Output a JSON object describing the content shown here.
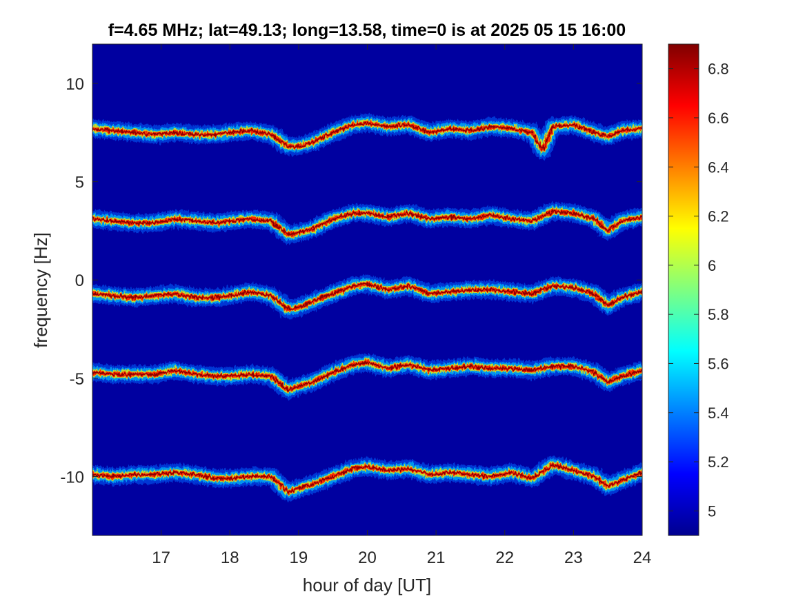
{
  "chart_data": {
    "type": "heatmap",
    "title": "f=4.65 MHz;  lat=49.13; long=13.58, time=0 is at 2025 05 15 16:00",
    "xlabel": "hour of day [UT]",
    "ylabel": "frequency [Hz]",
    "xlim": [
      16,
      24
    ],
    "ylim": [
      -13,
      12
    ],
    "x_ticks": [
      17,
      18,
      19,
      20,
      21,
      22,
      23,
      24
    ],
    "y_ticks": [
      -10,
      -5,
      0,
      5,
      10
    ],
    "colorbar": {
      "colormap": "jet",
      "range": [
        4.9,
        6.9
      ],
      "ticks": [
        5,
        5.2,
        5.4,
        5.6,
        5.8,
        6,
        6.2,
        6.4,
        6.6,
        6.8
      ]
    },
    "grid": false,
    "background_value": 4.9,
    "series": [
      {
        "x": [
          16.0,
          16.3,
          16.6,
          16.9,
          17.2,
          17.5,
          17.8,
          18.0,
          18.3,
          18.6,
          18.85,
          19.0,
          19.2,
          19.5,
          19.8,
          20.0,
          20.3,
          20.6,
          20.9,
          21.2,
          21.5,
          21.8,
          22.1,
          22.4,
          22.55,
          22.7,
          23.0,
          23.3,
          23.5,
          23.7,
          24.0
        ],
        "y": [
          7.7,
          7.6,
          7.5,
          7.4,
          7.5,
          7.4,
          7.4,
          7.5,
          7.6,
          7.4,
          6.8,
          6.8,
          7.0,
          7.5,
          7.9,
          8.0,
          7.8,
          7.9,
          7.5,
          7.7,
          7.6,
          7.8,
          7.7,
          7.5,
          6.6,
          7.8,
          7.9,
          7.5,
          7.3,
          7.6,
          7.7
        ]
      },
      {
        "x": [
          16.0,
          16.3,
          16.6,
          16.9,
          17.2,
          17.5,
          17.8,
          18.0,
          18.3,
          18.6,
          18.85,
          19.0,
          19.2,
          19.5,
          19.8,
          20.0,
          20.3,
          20.6,
          20.9,
          21.2,
          21.5,
          21.8,
          22.1,
          22.4,
          22.7,
          23.0,
          23.3,
          23.5,
          23.7,
          24.0
        ],
        "y": [
          3.1,
          3.0,
          2.9,
          2.9,
          3.1,
          3.0,
          2.9,
          3.0,
          3.1,
          3.0,
          2.3,
          2.4,
          2.6,
          3.1,
          3.4,
          3.4,
          3.2,
          3.4,
          3.1,
          3.2,
          3.1,
          3.3,
          3.1,
          3.0,
          3.5,
          3.4,
          3.1,
          2.5,
          3.0,
          3.2
        ]
      },
      {
        "x": [
          16.0,
          16.3,
          16.6,
          16.9,
          17.2,
          17.5,
          17.8,
          18.0,
          18.3,
          18.6,
          18.85,
          19.0,
          19.2,
          19.5,
          19.8,
          20.0,
          20.3,
          20.6,
          20.9,
          21.2,
          21.5,
          21.8,
          22.1,
          22.4,
          22.7,
          23.0,
          23.3,
          23.5,
          23.7,
          24.0
        ],
        "y": [
          -0.7,
          -0.8,
          -0.9,
          -0.8,
          -0.7,
          -0.9,
          -0.9,
          -0.8,
          -0.6,
          -0.8,
          -1.5,
          -1.4,
          -1.1,
          -0.7,
          -0.3,
          -0.2,
          -0.5,
          -0.3,
          -0.7,
          -0.6,
          -0.5,
          -0.5,
          -0.6,
          -0.7,
          -0.3,
          -0.4,
          -0.7,
          -1.3,
          -0.9,
          -0.6
        ]
      },
      {
        "x": [
          16.0,
          16.3,
          16.6,
          16.9,
          17.2,
          17.5,
          17.8,
          18.0,
          18.3,
          18.6,
          18.85,
          19.0,
          19.2,
          19.5,
          19.8,
          20.0,
          20.3,
          20.6,
          20.9,
          21.2,
          21.5,
          21.8,
          22.1,
          22.4,
          22.7,
          23.0,
          23.3,
          23.5,
          23.7,
          24.0
        ],
        "y": [
          -4.7,
          -4.8,
          -4.8,
          -4.8,
          -4.6,
          -4.8,
          -4.9,
          -4.9,
          -4.8,
          -4.9,
          -5.6,
          -5.4,
          -5.2,
          -4.7,
          -4.3,
          -4.2,
          -4.5,
          -4.3,
          -4.6,
          -4.5,
          -4.4,
          -4.5,
          -4.5,
          -4.6,
          -4.4,
          -4.4,
          -4.7,
          -5.2,
          -4.9,
          -4.6
        ]
      },
      {
        "x": [
          16.0,
          16.3,
          16.6,
          16.9,
          17.2,
          17.5,
          17.8,
          18.0,
          18.3,
          18.6,
          18.85,
          19.0,
          19.2,
          19.5,
          19.8,
          20.0,
          20.3,
          20.6,
          20.9,
          21.2,
          21.5,
          21.8,
          22.1,
          22.4,
          22.7,
          23.0,
          23.3,
          23.5,
          23.7,
          24.0
        ],
        "y": [
          -9.9,
          -10.0,
          -9.9,
          -9.9,
          -9.8,
          -9.9,
          -10.1,
          -10.1,
          -10.0,
          -10.0,
          -10.8,
          -10.6,
          -10.4,
          -10.0,
          -9.6,
          -9.5,
          -9.7,
          -9.6,
          -9.9,
          -9.8,
          -9.9,
          -10.0,
          -9.8,
          -10.1,
          -9.4,
          -9.7,
          -10.0,
          -10.5,
          -10.2,
          -9.8
        ]
      }
    ]
  }
}
